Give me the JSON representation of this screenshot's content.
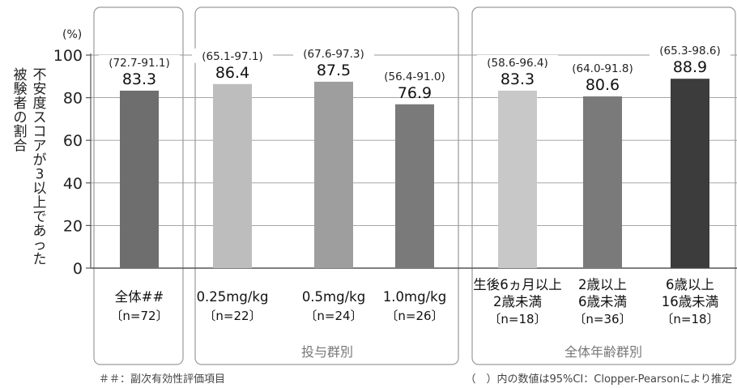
{
  "chart_data": {
    "type": "bar",
    "ylabel": "不安度スコアが3以上であった被験者の割合",
    "y_unit": "(%)",
    "ylim": [
      0,
      100
    ],
    "yticks": [
      0,
      20,
      40,
      60,
      80,
      100
    ],
    "grid": true,
    "categories": [
      [
        "全体##",
        "〔n=72〕"
      ],
      [
        "0.25mg/kg",
        "〔n=22〕"
      ],
      [
        "0.5mg/kg",
        "〔n=24〕"
      ],
      [
        "1.0mg/kg",
        "〔n=26〕"
      ],
      [
        "生後6ヵ月以上",
        "2歳未満",
        "〔n=18〕"
      ],
      [
        "2歳以上",
        "6歳未満",
        "〔n=36〕"
      ],
      [
        "6歳以上",
        "16歳未満",
        "〔n=18〕"
      ]
    ],
    "values": [
      83.3,
      86.4,
      87.5,
      76.9,
      83.3,
      80.6,
      88.9
    ],
    "value_labels": [
      "83.3",
      "86.4",
      "87.5",
      "76.9",
      "83.3",
      "80.6",
      "88.9"
    ],
    "ci_labels": [
      "(72.7-91.1)",
      "(65.1-97.1)",
      "(67.6-97.3)",
      "(56.4-91.0)",
      "(58.6-96.4)",
      "(64.0-91.8)",
      "(65.3-98.6)"
    ],
    "bar_colors": [
      "#6e6e6e",
      "#bdbdbd",
      "#9e9e9e",
      "#7a7a7a",
      "#c8c8c8",
      "#7a7a7a",
      "#3c3c3c"
    ],
    "groups": [
      {
        "label": "",
        "members": [
          0
        ]
      },
      {
        "label": "投与群別",
        "members": [
          1,
          2,
          3
        ]
      },
      {
        "label": "全体年齢群別",
        "members": [
          4,
          5,
          6
        ]
      }
    ]
  },
  "footnotes": {
    "left": "＃＃：副次有効性評価項目",
    "right": "（　）内の数値は95%CI：Clopper-Pearsonにより推定"
  }
}
